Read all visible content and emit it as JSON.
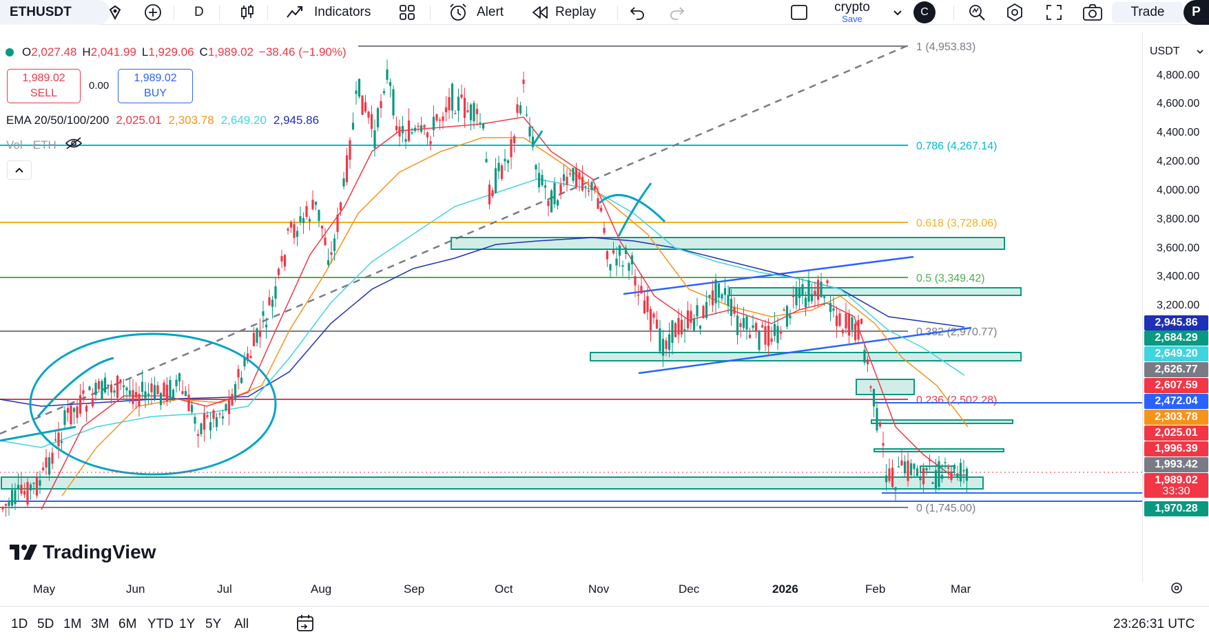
{
  "toolbar": {
    "symbol": "ETHUSDT",
    "interval": "D",
    "indicators_label": "Indicators",
    "alert_label": "Alert",
    "replay_label": "Replay",
    "layout_name": "crypto",
    "layout_save": "Save",
    "account_initial": "C",
    "trade_label": "Trade",
    "extra_label": "P"
  },
  "legend": {
    "open_label": "O",
    "open": "2,027.48",
    "high_label": "H",
    "high": "2,041.99",
    "low_label": "L",
    "low": "1,929.06",
    "close_label": "C",
    "close": "1,989.02",
    "change": "−38.46 (−1.90%)",
    "ema_label": "EMA 20/50/100/200",
    "ema20": "2,025.01",
    "ema50": "2,303.78",
    "ema100": "2,649.20",
    "ema200": "2,945.86",
    "vol_label": "Vol · ETH"
  },
  "trade_buttons": {
    "sell_price": "1,989.02",
    "sell_label": "SELL",
    "spread": "0.00",
    "buy_price": "1,989.02",
    "buy_label": "BUY"
  },
  "price_axis": {
    "currency": "USDT",
    "ticks": [
      "4,800.00",
      "4,600.00",
      "4,400.00",
      "4,200.00",
      "4,000.00",
      "3,800.00",
      "3,600.00",
      "3,400.00",
      "3,200.00"
    ],
    "tags": [
      {
        "value": "2,945.86",
        "color": "#1e2fb8"
      },
      {
        "value": "2,684.29",
        "color": "#089981"
      },
      {
        "value": "2,649.20",
        "color": "#3fd5e0"
      },
      {
        "value": "2,626.77",
        "color": "#787b86"
      },
      {
        "value": "2,607.59",
        "color": "#f23645"
      },
      {
        "value": "2,472.04",
        "color": "#2962ff"
      },
      {
        "value": "2,303.78",
        "color": "#f7931a"
      },
      {
        "value": "2,025.01",
        "color": "#f23645"
      },
      {
        "value": "1,996.39",
        "color": "#f23645"
      },
      {
        "value": "1,993.42",
        "color": "#787b86"
      },
      {
        "value": "1,989.02",
        "color": "#f23645"
      },
      {
        "value": "33:30",
        "color": "#f23645"
      },
      {
        "value": "1,970.28",
        "color": "#089981"
      }
    ]
  },
  "fib_levels": [
    {
      "label": "1 (4,953.83)",
      "color": "#787b86"
    },
    {
      "label": "0.786 (4,267.14)",
      "color": "#00bcd4"
    },
    {
      "label": "0.618 (3,728.06)",
      "color": "#f2b01e"
    },
    {
      "label": "0.5 (3,349.42)",
      "color": "#4caf50"
    },
    {
      "label": "0.382 (2,970.77)",
      "color": "#787b86"
    },
    {
      "label": "0.236 (2,502.28)",
      "color": "#f23645"
    },
    {
      "label": "0 (1,745.00)",
      "color": "#787b86"
    }
  ],
  "time_axis": [
    "May",
    "Jun",
    "Jul",
    "Aug",
    "Sep",
    "Oct",
    "Nov",
    "Dec",
    "2026",
    "Feb",
    "Mar"
  ],
  "ranges": [
    "1D",
    "5D",
    "1M",
    "3M",
    "6M",
    "YTD",
    "1Y",
    "5Y",
    "All"
  ],
  "clock": "23:26:31 UTC",
  "watermark": "TradingView"
}
